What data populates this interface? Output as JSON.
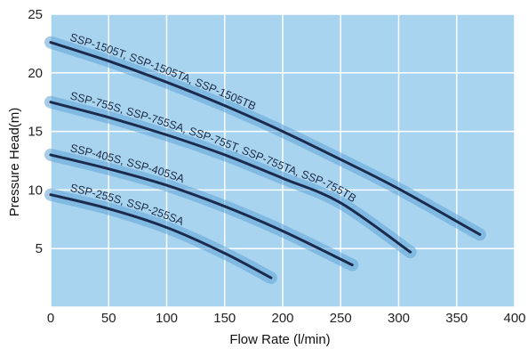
{
  "chart_data": {
    "type": "line",
    "xlabel": "Flow Rate (l/min)",
    "ylabel": "Pressure Head(m)",
    "xlim": [
      0,
      400
    ],
    "ylim": [
      0,
      25
    ],
    "x_ticks": [
      "0",
      "50",
      "100",
      "150",
      "200",
      "250",
      "300",
      "350",
      "400"
    ],
    "y_ticks": [
      "5",
      "10",
      "15",
      "20",
      "25"
    ],
    "grid": true,
    "series": [
      {
        "name": "SSP-1505T, SSP-1505TA, SSP-1505TB",
        "x": [
          0,
          50,
          100,
          150,
          200,
          250,
          300,
          370
        ],
        "y": [
          22.6,
          21.0,
          19.2,
          17.2,
          15.0,
          12.6,
          10.1,
          6.2
        ]
      },
      {
        "name": "SSP-755S, SSP-755SA, SSP-755T, SSP-755TA, SSP-755TB",
        "x": [
          0,
          50,
          100,
          150,
          200,
          250,
          310
        ],
        "y": [
          17.5,
          16.2,
          14.7,
          13.0,
          11.0,
          8.9,
          4.7
        ]
      },
      {
        "name": "SSP-405S, SSP-405SA",
        "x": [
          0,
          50,
          100,
          150,
          200,
          260
        ],
        "y": [
          13.0,
          11.8,
          10.4,
          8.6,
          6.5,
          3.6
        ]
      },
      {
        "name": "SSP-255S, SSP-255SA",
        "x": [
          0,
          50,
          100,
          150,
          190
        ],
        "y": [
          9.6,
          8.4,
          6.8,
          4.6,
          2.5
        ]
      }
    ]
  },
  "colors": {
    "plot_background": "#a9d4ef",
    "grid": "#ffffff",
    "curve": "#1b2b4e",
    "curve_glow": "#5fa3d6",
    "text": "#222222"
  }
}
